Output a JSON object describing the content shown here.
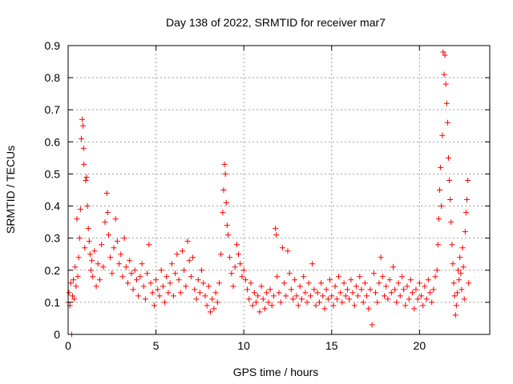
{
  "chart_data": {
    "type": "scatter",
    "title": "Day 138 of 2022, SRMTID for receiver mar7",
    "xlabel": "GPS time / hours",
    "ylabel": "SRMTID / TECUs",
    "xlim": [
      0,
      24
    ],
    "ylim": [
      0,
      0.9
    ],
    "grid": true,
    "marker": "+",
    "series_color": "#ff0000",
    "xticks": [
      {
        "value": 0,
        "label": "0"
      },
      {
        "value": 5,
        "label": "5"
      },
      {
        "value": 10,
        "label": "10"
      },
      {
        "value": 15,
        "label": "15"
      },
      {
        "value": 20,
        "label": "20"
      }
    ],
    "yticks": [
      {
        "value": 0,
        "label": "0"
      },
      {
        "value": 0.1,
        "label": "0.1"
      },
      {
        "value": 0.2,
        "label": "0.2"
      },
      {
        "value": 0.3,
        "label": "0.3"
      },
      {
        "value": 0.4,
        "label": "0.4"
      },
      {
        "value": 0.5,
        "label": "0.5"
      },
      {
        "value": 0.6,
        "label": "0.6"
      },
      {
        "value": 0.7,
        "label": "0.7"
      },
      {
        "value": 0.8,
        "label": "0.8"
      },
      {
        "value": 0.9,
        "label": "0.9"
      }
    ],
    "series": [
      {
        "name": "SRMTID",
        "points": [
          [
            0.0,
            0.1
          ],
          [
            0.05,
            0.13
          ],
          [
            0.1,
            0.09
          ],
          [
            0.15,
            0.16
          ],
          [
            0.2,
            0.0
          ],
          [
            0.25,
            0.12
          ],
          [
            0.3,
            0.17
          ],
          [
            0.35,
            0.11
          ],
          [
            0.4,
            0.21
          ],
          [
            0.45,
            0.15
          ],
          [
            0.5,
            0.36
          ],
          [
            0.55,
            0.18
          ],
          [
            0.6,
            0.24
          ],
          [
            0.65,
            0.3
          ],
          [
            0.7,
            0.39
          ],
          [
            0.75,
            0.61
          ],
          [
            0.8,
            0.67
          ],
          [
            0.85,
            0.65
          ],
          [
            0.88,
            0.58
          ],
          [
            0.9,
            0.53
          ],
          [
            0.95,
            0.27
          ],
          [
            1.0,
            0.48
          ],
          [
            1.05,
            0.49
          ],
          [
            1.1,
            0.4
          ],
          [
            1.15,
            0.33
          ],
          [
            1.2,
            0.29
          ],
          [
            1.25,
            0.25
          ],
          [
            1.3,
            0.2
          ],
          [
            1.35,
            0.23
          ],
          [
            1.4,
            0.18
          ],
          [
            1.5,
            0.26
          ],
          [
            1.6,
            0.15
          ],
          [
            1.7,
            0.22
          ],
          [
            1.8,
            0.17
          ],
          [
            1.9,
            0.28
          ],
          [
            2.0,
            0.21
          ],
          [
            2.1,
            0.35
          ],
          [
            2.2,
            0.44
          ],
          [
            2.25,
            0.38
          ],
          [
            2.3,
            0.31
          ],
          [
            2.4,
            0.24
          ],
          [
            2.5,
            0.19
          ],
          [
            2.6,
            0.27
          ],
          [
            2.7,
            0.36
          ],
          [
            2.8,
            0.29
          ],
          [
            2.9,
            0.22
          ],
          [
            3.0,
            0.25
          ],
          [
            3.1,
            0.18
          ],
          [
            3.2,
            0.3
          ],
          [
            3.3,
            0.21
          ],
          [
            3.4,
            0.16
          ],
          [
            3.5,
            0.23
          ],
          [
            3.6,
            0.19
          ],
          [
            3.7,
            0.14
          ],
          [
            3.8,
            0.2
          ],
          [
            3.9,
            0.17
          ],
          [
            4.0,
            0.12
          ],
          [
            4.1,
            0.18
          ],
          [
            4.2,
            0.22
          ],
          [
            4.3,
            0.15
          ],
          [
            4.4,
            0.11
          ],
          [
            4.5,
            0.19
          ],
          [
            4.6,
            0.28
          ],
          [
            4.7,
            0.16
          ],
          [
            4.8,
            0.13
          ],
          [
            4.9,
            0.09
          ],
          [
            5.0,
            0.17
          ],
          [
            5.1,
            0.14
          ],
          [
            5.2,
            0.12
          ],
          [
            5.3,
            0.2
          ],
          [
            5.4,
            0.15
          ],
          [
            5.5,
            0.1
          ],
          [
            5.6,
            0.18
          ],
          [
            5.7,
            0.13
          ],
          [
            5.8,
            0.16
          ],
          [
            5.9,
            0.22
          ],
          [
            6.0,
            0.12
          ],
          [
            6.1,
            0.19
          ],
          [
            6.2,
            0.25
          ],
          [
            6.3,
            0.17
          ],
          [
            6.4,
            0.13
          ],
          [
            6.5,
            0.26
          ],
          [
            6.6,
            0.2
          ],
          [
            6.7,
            0.15
          ],
          [
            6.8,
            0.29
          ],
          [
            6.9,
            0.23
          ],
          [
            7.0,
            0.18
          ],
          [
            7.1,
            0.24
          ],
          [
            7.2,
            0.14
          ],
          [
            7.3,
            0.11
          ],
          [
            7.4,
            0.17
          ],
          [
            7.5,
            0.13
          ],
          [
            7.6,
            0.2
          ],
          [
            7.7,
            0.16
          ],
          [
            7.8,
            0.12
          ],
          [
            7.9,
            0.09
          ],
          [
            8.0,
            0.15
          ],
          [
            8.1,
            0.07
          ],
          [
            8.2,
            0.11
          ],
          [
            8.3,
            0.08
          ],
          [
            8.4,
            0.13
          ],
          [
            8.5,
            0.1
          ],
          [
            8.6,
            0.16
          ],
          [
            8.7,
            0.25
          ],
          [
            8.8,
            0.38
          ],
          [
            8.85,
            0.45
          ],
          [
            8.9,
            0.53
          ],
          [
            8.95,
            0.5
          ],
          [
            9.0,
            0.41
          ],
          [
            9.05,
            0.34
          ],
          [
            9.1,
            0.31
          ],
          [
            9.2,
            0.24
          ],
          [
            9.3,
            0.19
          ],
          [
            9.4,
            0.15
          ],
          [
            9.5,
            0.21
          ],
          [
            9.6,
            0.28
          ],
          [
            9.7,
            0.25
          ],
          [
            9.8,
            0.22
          ],
          [
            9.9,
            0.18
          ],
          [
            10.0,
            0.2
          ],
          [
            10.1,
            0.17
          ],
          [
            10.2,
            0.14
          ],
          [
            10.3,
            0.11
          ],
          [
            10.4,
            0.16
          ],
          [
            10.5,
            0.09
          ],
          [
            10.6,
            0.13
          ],
          [
            10.7,
            0.1
          ],
          [
            10.8,
            0.12
          ],
          [
            10.9,
            0.07
          ],
          [
            11.0,
            0.15
          ],
          [
            11.1,
            0.11
          ],
          [
            11.2,
            0.08
          ],
          [
            11.3,
            0.13
          ],
          [
            11.4,
            0.1
          ],
          [
            11.5,
            0.14
          ],
          [
            11.6,
            0.09
          ],
          [
            11.7,
            0.12
          ],
          [
            11.8,
            0.33
          ],
          [
            11.85,
            0.31
          ],
          [
            11.9,
            0.18
          ],
          [
            12.0,
            0.13
          ],
          [
            12.1,
            0.1
          ],
          [
            12.2,
            0.27
          ],
          [
            12.3,
            0.16
          ],
          [
            12.4,
            0.12
          ],
          [
            12.5,
            0.26
          ],
          [
            12.6,
            0.19
          ],
          [
            12.7,
            0.14
          ],
          [
            12.8,
            0.11
          ],
          [
            12.9,
            0.17
          ],
          [
            13.0,
            0.12
          ],
          [
            13.1,
            0.09
          ],
          [
            13.2,
            0.15
          ],
          [
            13.3,
            0.11
          ],
          [
            13.4,
            0.18
          ],
          [
            13.5,
            0.13
          ],
          [
            13.6,
            0.1
          ],
          [
            13.7,
            0.16
          ],
          [
            13.8,
            0.12
          ],
          [
            13.9,
            0.22
          ],
          [
            14.0,
            0.14
          ],
          [
            14.1,
            0.09
          ],
          [
            14.2,
            0.13
          ],
          [
            14.3,
            0.1
          ],
          [
            14.4,
            0.16
          ],
          [
            14.5,
            0.12
          ],
          [
            14.6,
            0.08
          ],
          [
            14.7,
            0.14
          ],
          [
            14.8,
            0.11
          ],
          [
            14.9,
            0.17
          ],
          [
            15.0,
            0.12
          ],
          [
            15.1,
            0.09
          ],
          [
            15.2,
            0.15
          ],
          [
            15.3,
            0.11
          ],
          [
            15.4,
            0.18
          ],
          [
            15.5,
            0.13
          ],
          [
            15.6,
            0.1
          ],
          [
            15.7,
            0.16
          ],
          [
            15.8,
            0.12
          ],
          [
            15.9,
            0.14
          ],
          [
            16.0,
            0.11
          ],
          [
            16.1,
            0.17
          ],
          [
            16.2,
            0.13
          ],
          [
            16.3,
            0.09
          ],
          [
            16.4,
            0.15
          ],
          [
            16.5,
            0.12
          ],
          [
            16.6,
            0.18
          ],
          [
            16.7,
            0.14
          ],
          [
            16.8,
            0.1
          ],
          [
            16.9,
            0.16
          ],
          [
            17.0,
            0.12
          ],
          [
            17.1,
            0.08
          ],
          [
            17.2,
            0.14
          ],
          [
            17.3,
            0.03
          ],
          [
            17.4,
            0.19
          ],
          [
            17.5,
            0.13
          ],
          [
            17.6,
            0.1
          ],
          [
            17.7,
            0.16
          ],
          [
            17.8,
            0.24
          ],
          [
            17.9,
            0.18
          ],
          [
            18.0,
            0.12
          ],
          [
            18.1,
            0.15
          ],
          [
            18.2,
            0.11
          ],
          [
            18.3,
            0.17
          ],
          [
            18.4,
            0.13
          ],
          [
            18.5,
            0.21
          ],
          [
            18.6,
            0.14
          ],
          [
            18.7,
            0.1
          ],
          [
            18.8,
            0.16
          ],
          [
            18.9,
            0.12
          ],
          [
            19.0,
            0.18
          ],
          [
            19.1,
            0.14
          ],
          [
            19.2,
            0.09
          ],
          [
            19.3,
            0.15
          ],
          [
            19.4,
            0.11
          ],
          [
            19.5,
            0.17
          ],
          [
            19.6,
            0.13
          ],
          [
            19.7,
            0.08
          ],
          [
            19.8,
            0.14
          ],
          [
            19.9,
            0.11
          ],
          [
            20.0,
            0.16
          ],
          [
            20.1,
            0.12
          ],
          [
            20.2,
            0.09
          ],
          [
            20.3,
            0.15
          ],
          [
            20.4,
            0.11
          ],
          [
            20.5,
            0.17
          ],
          [
            20.6,
            0.13
          ],
          [
            20.7,
            0.1
          ],
          [
            20.8,
            0.14
          ],
          [
            20.9,
            0.18
          ],
          [
            21.0,
            0.2
          ],
          [
            21.05,
            0.28
          ],
          [
            21.1,
            0.36
          ],
          [
            21.15,
            0.45
          ],
          [
            21.2,
            0.52
          ],
          [
            21.25,
            0.4
          ],
          [
            21.3,
            0.62
          ],
          [
            21.35,
            0.88
          ],
          [
            21.4,
            0.81
          ],
          [
            21.45,
            0.87
          ],
          [
            21.5,
            0.78
          ],
          [
            21.55,
            0.72
          ],
          [
            21.6,
            0.66
          ],
          [
            21.65,
            0.55
          ],
          [
            21.7,
            0.48
          ],
          [
            21.75,
            0.42
          ],
          [
            21.8,
            0.35
          ],
          [
            21.85,
            0.28
          ],
          [
            21.9,
            0.22
          ],
          [
            21.95,
            0.16
          ],
          [
            22.0,
            0.12
          ],
          [
            22.05,
            0.06
          ],
          [
            22.1,
            0.09
          ],
          [
            22.15,
            0.13
          ],
          [
            22.2,
            0.2
          ],
          [
            22.25,
            0.17
          ],
          [
            22.3,
            0.24
          ],
          [
            22.35,
            0.19
          ],
          [
            22.4,
            0.14
          ],
          [
            22.45,
            0.27
          ],
          [
            22.5,
            0.21
          ],
          [
            22.55,
            0.11
          ],
          [
            22.6,
            0.32
          ],
          [
            22.65,
            0.38
          ],
          [
            22.7,
            0.42
          ],
          [
            22.75,
            0.48
          ],
          [
            22.8,
            0.16
          ]
        ]
      }
    ]
  }
}
